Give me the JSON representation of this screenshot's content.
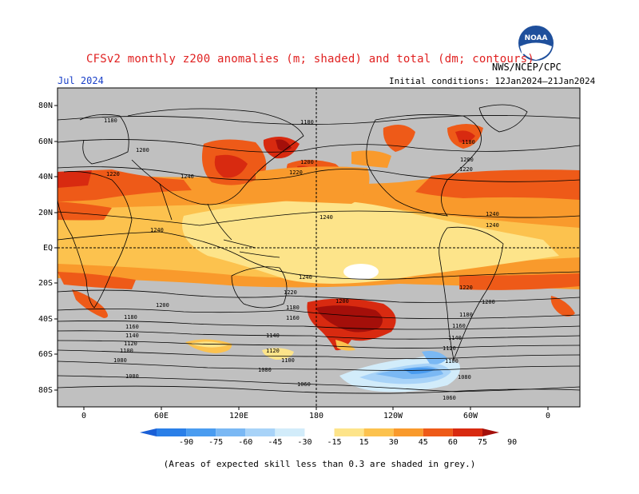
{
  "header": {
    "title": "CFSv2 monthly z200 anomalies (m; shaded) and total (dm; contours)",
    "agency": "NWS/NCEP/CPC",
    "month": "Jul 2024",
    "initial_conditions": "Initial conditions: 12Jan2024–21Jan2024",
    "logo_text": "NOAA"
  },
  "footer_note": "(Areas of expected skill less than 0.3 are shaded in grey.)",
  "axes": {
    "lat_labels": [
      "80N",
      "60N",
      "40N",
      "20N",
      "EQ",
      "20S",
      "40S",
      "60S",
      "80S"
    ],
    "lon_labels": [
      "0",
      "60E",
      "120E",
      "180",
      "120W",
      "60W",
      "0"
    ]
  },
  "colorbar": {
    "labels": [
      "-90",
      "-75",
      "-60",
      "-45",
      "-30",
      "-15",
      "15",
      "30",
      "45",
      "60",
      "75",
      "90"
    ],
    "colors": [
      "#1a5fd6",
      "#2a7fe8",
      "#4a9cf0",
      "#7ab8f4",
      "#a8d3f8",
      "#d2ecfa",
      "#ffffff",
      "#fde48a",
      "#fcc24e",
      "#f99a2c",
      "#ee5a18",
      "#d82a10",
      "#a40f0a"
    ]
  },
  "contour_labels": {
    "1060": "1060",
    "1080": "1080",
    "1100": "1100",
    "1120": "1120",
    "1140": "1140",
    "1160": "1160",
    "1180": "1180",
    "1200": "1200",
    "1220": "1220",
    "1240": "1240"
  },
  "colors": {
    "land_grey": "#c0c0c0",
    "title_red": "#e02020",
    "month_blue": "#1a40c8"
  }
}
